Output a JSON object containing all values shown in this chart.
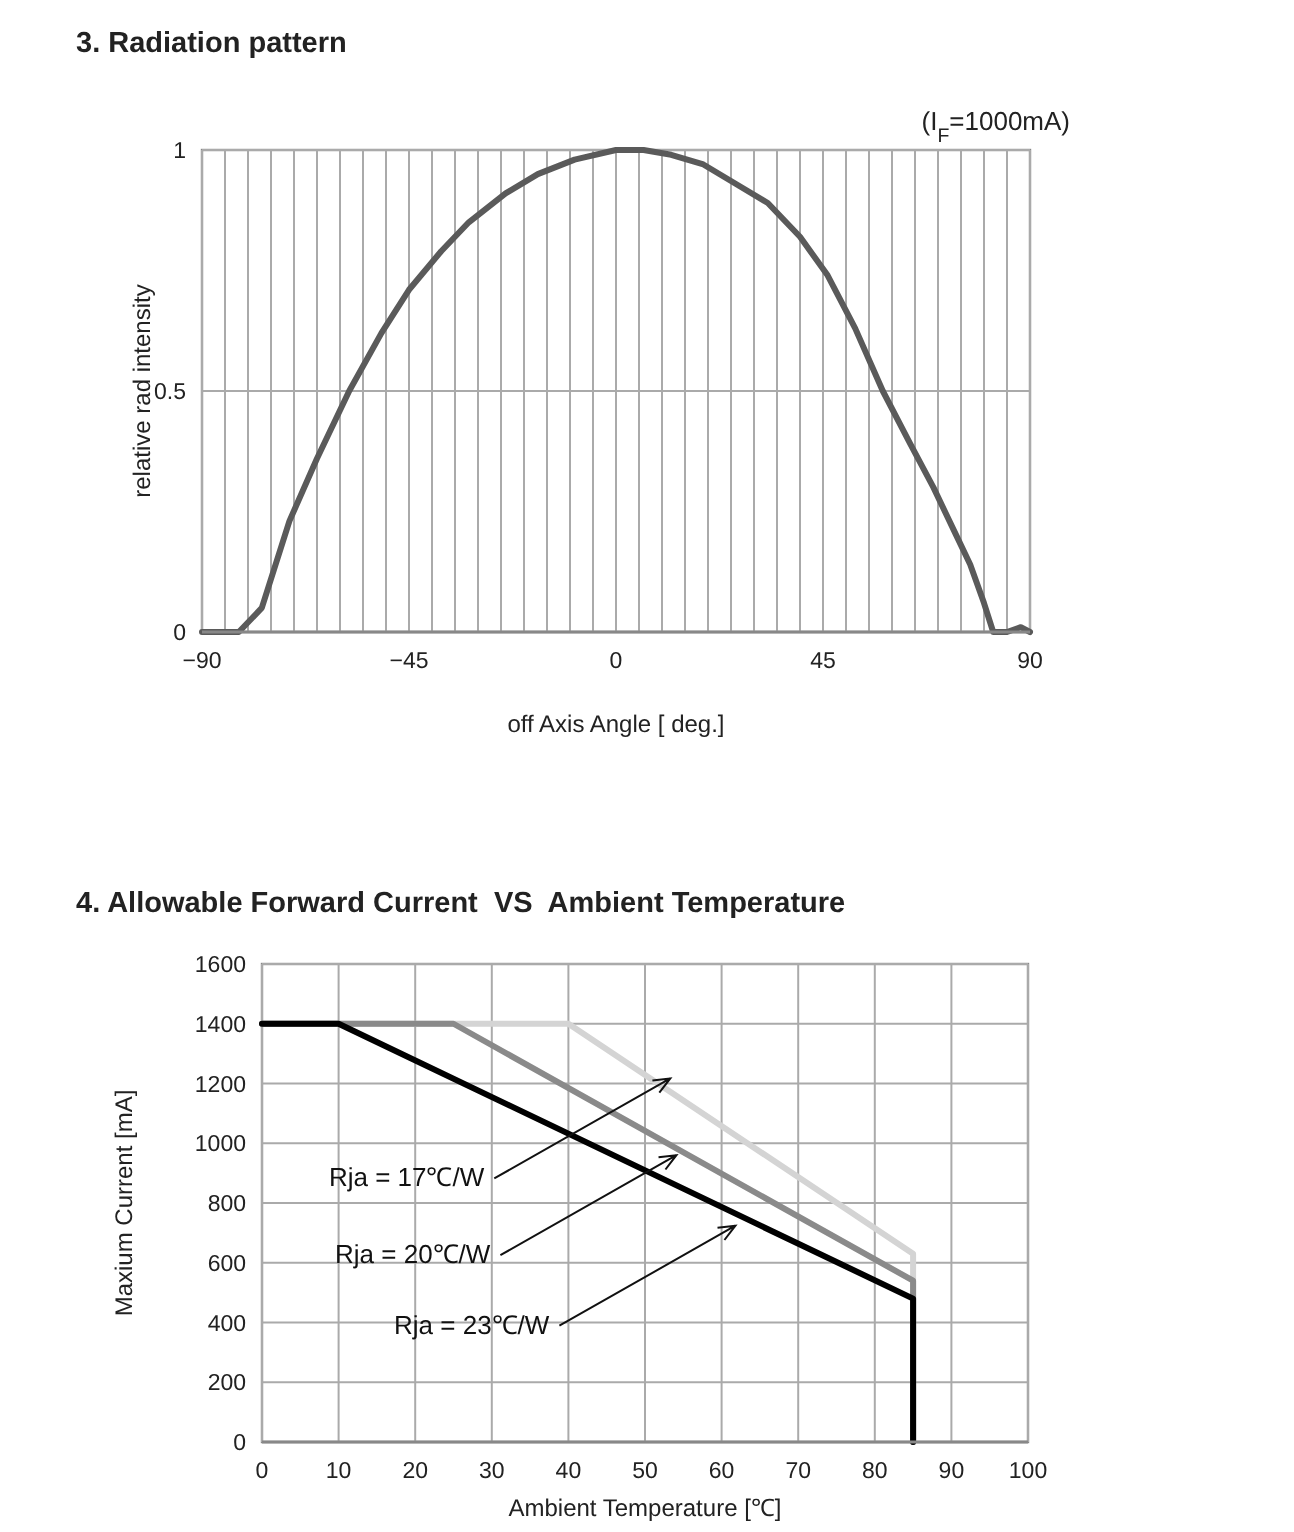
{
  "chart_data": [
    {
      "type": "line",
      "title": "3. Radiation pattern",
      "xlabel": "off Axis Angle [ deg.]",
      "ylabel": "relative rad intensity",
      "annotations": [
        "(I$_{F}$=1000mA)"
      ],
      "xlim": [
        -90,
        90
      ],
      "ylim": [
        0,
        1
      ],
      "xticks": [
        -90,
        {
          "value": -85,
          "label": null
        },
        {
          "value": -80,
          "label": null
        },
        {
          "value": -75,
          "label": null
        },
        {
          "value": -70,
          "label": null
        },
        {
          "value": -65,
          "label": null
        },
        {
          "value": -60,
          "label": null
        },
        {
          "value": -55,
          "label": null
        },
        {
          "value": -50,
          "label": null
        },
        -45,
        {
          "value": -40,
          "label": null
        },
        {
          "value": -35,
          "label": null
        },
        {
          "value": -30,
          "label": null
        },
        {
          "value": -25,
          "label": null
        },
        {
          "value": -20,
          "label": null
        },
        {
          "value": -15,
          "label": null
        },
        {
          "value": -10,
          "label": null
        },
        {
          "value": -5,
          "label": null
        },
        0,
        {
          "value": 5,
          "label": null
        },
        {
          "value": 10,
          "label": null
        },
        {
          "value": 15,
          "label": null
        },
        {
          "value": 20,
          "label": null
        },
        {
          "value": 25,
          "label": null
        },
        {
          "value": 30,
          "label": null
        },
        {
          "value": 35,
          "label": null
        },
        {
          "value": 40,
          "label": null
        },
        45,
        {
          "value": 50,
          "label": null
        },
        {
          "value": 55,
          "label": null
        },
        {
          "value": 60,
          "label": null
        },
        {
          "value": 65,
          "label": null
        },
        {
          "value": 70,
          "label": null
        },
        {
          "value": 75,
          "label": null
        },
        {
          "value": 80,
          "label": null
        },
        {
          "value": 85,
          "label": null
        },
        90
      ],
      "yticks": [
        0,
        0.5,
        1
      ],
      "grid": true,
      "marker": "none",
      "line_style": "solid",
      "series": [
        {
          "color": "#5a5a5a",
          "x": [
            -90,
            -82,
            -77,
            -71,
            -65,
            -58,
            -51,
            -45,
            -38,
            -32,
            -24,
            -17,
            -9,
            0,
            6,
            12,
            19,
            26,
            33,
            40,
            46,
            52,
            58,
            64,
            69,
            74,
            77,
            80,
            82,
            85,
            88,
            90
          ],
          "values": [
            0,
            0,
            0.05,
            0.23,
            0.36,
            0.5,
            0.62,
            0.71,
            0.79,
            0.85,
            0.91,
            0.95,
            0.98,
            1,
            1,
            0.99,
            0.97,
            0.93,
            0.89,
            0.82,
            0.74,
            0.63,
            0.5,
            0.39,
            0.3,
            0.2,
            0.14,
            0.06,
            0,
            0,
            0.01,
            0
          ]
        }
      ]
    },
    {
      "type": "line",
      "title": "4. Allowable Forward Current  VS  Ambient Temperature",
      "xlabel": "Ambient Temperature [℃]",
      "ylabel": "Maxium Current [mA]",
      "annotations": [
        {
          "text": "Rja = 17℃/W",
          "x": 53.3,
          "y": 1217
        },
        {
          "text": "Rja = 20℃/W",
          "x": 54.1,
          "y": 960
        },
        {
          "text": "Rja = 23℃/W",
          "x": 61.8,
          "y": 724
        }
      ],
      "xlim": [
        0,
        100
      ],
      "ylim": [
        0,
        1600
      ],
      "xticks": [
        0,
        10,
        20,
        30,
        40,
        50,
        60,
        70,
        80,
        90,
        100
      ],
      "yticks": [
        0,
        200,
        400,
        600,
        800,
        1000,
        1200,
        1400,
        1600
      ],
      "grid": true,
      "marker": "none",
      "line_style": "solid",
      "series": [
        {
          "color": "#d4d4d4",
          "x": [
            0,
            40,
            85,
            85
          ],
          "values": [
            1400,
            1400,
            630,
            0
          ]
        },
        {
          "color": "#8a8a8a",
          "x": [
            0,
            25,
            85,
            85
          ],
          "values": [
            1400,
            1400,
            540,
            0
          ]
        },
        {
          "color": "#000000",
          "x": [
            0,
            10,
            85,
            85
          ],
          "values": [
            1400,
            1400,
            480,
            0
          ]
        }
      ]
    }
  ]
}
